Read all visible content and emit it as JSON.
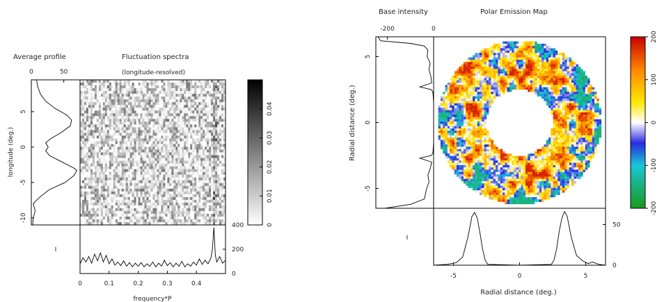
{
  "chart_data": [
    {
      "type": "line",
      "panel": "average-profile",
      "title": "Average profile",
      "ylabel": "longitude (deg.)",
      "xlim": [
        0,
        75
      ],
      "ylim": [
        -11,
        9.5
      ],
      "x_ticks": [
        0,
        50
      ],
      "y_ticks": [
        -10,
        -5,
        0,
        5
      ],
      "points": [
        {
          "y": -11,
          "x": 2
        },
        {
          "y": -10,
          "x": 3
        },
        {
          "y": -9,
          "x": 6
        },
        {
          "y": -8,
          "x": 3
        },
        {
          "y": -7.5,
          "x": 8
        },
        {
          "y": -7,
          "x": 14
        },
        {
          "y": -6,
          "x": 28
        },
        {
          "y": -5,
          "x": 52
        },
        {
          "y": -4,
          "x": 66
        },
        {
          "y": -3.3,
          "x": 70
        },
        {
          "y": -3,
          "x": 66
        },
        {
          "y": -2,
          "x": 45
        },
        {
          "y": -1.2,
          "x": 28
        },
        {
          "y": -0.5,
          "x": 22
        },
        {
          "y": 0,
          "x": 26
        },
        {
          "y": 0.6,
          "x": 22
        },
        {
          "y": 1.2,
          "x": 30
        },
        {
          "y": 2,
          "x": 45
        },
        {
          "y": 3,
          "x": 60
        },
        {
          "y": 3.8,
          "x": 62
        },
        {
          "y": 4.5,
          "x": 55
        },
        {
          "y": 5.5,
          "x": 36
        },
        {
          "y": 6.5,
          "x": 22
        },
        {
          "y": 7.5,
          "x": 14
        },
        {
          "y": 8.5,
          "x": 10
        },
        {
          "y": 9.5,
          "x": 8
        }
      ]
    },
    {
      "type": "heatmap",
      "panel": "fluctuation-spectra",
      "title": "Fluctuation spectra",
      "subtitle": "(longitude-resolved)",
      "xlim": [
        0,
        0.5
      ],
      "ylim": [
        -11,
        9.5
      ],
      "colorbar": {
        "range": [
          0,
          0.05
        ],
        "ticks": [
          0,
          0.01,
          0.02,
          0.03,
          0.04
        ],
        "colormap": "white-to-black"
      }
    },
    {
      "type": "line",
      "panel": "integrated-spectrum",
      "xlabel": "frequency*P",
      "xlim": [
        0,
        0.5
      ],
      "ylim": [
        0,
        400
      ],
      "x_ticks": [
        0,
        0.1,
        0.2,
        0.3,
        0.4
      ],
      "y_ticks": [
        0,
        200,
        400
      ],
      "marker": "I",
      "points": [
        {
          "x": 0.0,
          "y": 80
        },
        {
          "x": 0.01,
          "y": 130
        },
        {
          "x": 0.02,
          "y": 95
        },
        {
          "x": 0.03,
          "y": 140
        },
        {
          "x": 0.04,
          "y": 85
        },
        {
          "x": 0.05,
          "y": 160
        },
        {
          "x": 0.06,
          "y": 105
        },
        {
          "x": 0.07,
          "y": 170
        },
        {
          "x": 0.08,
          "y": 95
        },
        {
          "x": 0.09,
          "y": 150
        },
        {
          "x": 0.1,
          "y": 80
        },
        {
          "x": 0.11,
          "y": 120
        },
        {
          "x": 0.12,
          "y": 70
        },
        {
          "x": 0.13,
          "y": 95
        },
        {
          "x": 0.14,
          "y": 65
        },
        {
          "x": 0.15,
          "y": 105
        },
        {
          "x": 0.16,
          "y": 60
        },
        {
          "x": 0.17,
          "y": 90
        },
        {
          "x": 0.18,
          "y": 55
        },
        {
          "x": 0.19,
          "y": 85
        },
        {
          "x": 0.2,
          "y": 60
        },
        {
          "x": 0.21,
          "y": 90
        },
        {
          "x": 0.22,
          "y": 55
        },
        {
          "x": 0.23,
          "y": 80
        },
        {
          "x": 0.24,
          "y": 60
        },
        {
          "x": 0.25,
          "y": 95
        },
        {
          "x": 0.26,
          "y": 55
        },
        {
          "x": 0.27,
          "y": 85
        },
        {
          "x": 0.28,
          "y": 60
        },
        {
          "x": 0.29,
          "y": 110
        },
        {
          "x": 0.3,
          "y": 65
        },
        {
          "x": 0.31,
          "y": 90
        },
        {
          "x": 0.32,
          "y": 55
        },
        {
          "x": 0.33,
          "y": 85
        },
        {
          "x": 0.34,
          "y": 60
        },
        {
          "x": 0.35,
          "y": 100
        },
        {
          "x": 0.36,
          "y": 55
        },
        {
          "x": 0.37,
          "y": 80
        },
        {
          "x": 0.38,
          "y": 60
        },
        {
          "x": 0.39,
          "y": 95
        },
        {
          "x": 0.4,
          "y": 70
        },
        {
          "x": 0.41,
          "y": 120
        },
        {
          "x": 0.42,
          "y": 75
        },
        {
          "x": 0.43,
          "y": 110
        },
        {
          "x": 0.44,
          "y": 80
        },
        {
          "x": 0.45,
          "y": 130
        },
        {
          "x": 0.455,
          "y": 200
        },
        {
          "x": 0.46,
          "y": 380
        },
        {
          "x": 0.465,
          "y": 150
        },
        {
          "x": 0.47,
          "y": 95
        },
        {
          "x": 0.48,
          "y": 140
        },
        {
          "x": 0.49,
          "y": 85
        },
        {
          "x": 0.5,
          "y": 110
        }
      ]
    },
    {
      "type": "line",
      "panel": "base-intensity",
      "title": "Base intensity",
      "ylabel": "Radial distance (deg.)",
      "xlim": [
        -250,
        0
      ],
      "ylim": [
        -6.5,
        6.5
      ],
      "x_ticks": [
        -200,
        0
      ],
      "y_ticks": [
        -5,
        0,
        5
      ],
      "points": [
        {
          "y": -6.5,
          "x": -210
        },
        {
          "y": -6.2,
          "x": -100
        },
        {
          "y": -5.8,
          "x": -40
        },
        {
          "y": -5,
          "x": -30
        },
        {
          "y": -4.5,
          "x": -20
        },
        {
          "y": -4,
          "x": -25
        },
        {
          "y": -3.5,
          "x": -15
        },
        {
          "y": -3,
          "x": -8
        },
        {
          "y": -2.7,
          "x": -60
        },
        {
          "y": -2.5,
          "x": -10
        },
        {
          "y": -2.3,
          "x": -3
        },
        {
          "y": -1.5,
          "x": 0
        },
        {
          "y": 0,
          "x": 0
        },
        {
          "y": 1.5,
          "x": 0
        },
        {
          "y": 2.3,
          "x": -3
        },
        {
          "y": 2.5,
          "x": -10
        },
        {
          "y": 2.7,
          "x": -60
        },
        {
          "y": 3,
          "x": -8
        },
        {
          "y": 3.5,
          "x": -12
        },
        {
          "y": 4,
          "x": -20
        },
        {
          "y": 4.5,
          "x": -15
        },
        {
          "y": 5,
          "x": -28
        },
        {
          "y": 5.5,
          "x": -25
        },
        {
          "y": 5.8,
          "x": -40
        },
        {
          "y": 6.0,
          "x": -100
        },
        {
          "y": 6.2,
          "x": -230
        },
        {
          "y": 6.5,
          "x": -240
        }
      ]
    },
    {
      "type": "heatmap",
      "panel": "polar-emission-map",
      "title": "Polar Emission Map",
      "xlabel": "Radial distance (deg.)",
      "xlim": [
        -6.5,
        6.5
      ],
      "ylim": [
        -6.5,
        6.5
      ],
      "ring_radius_deg": [
        2.5,
        6.2
      ],
      "colorbar": {
        "range": [
          -200,
          200
        ],
        "ticks": [
          -200,
          -100,
          0,
          100,
          200
        ],
        "colormap": "green-cyan-blue-white-yellow-red",
        "colors": [
          "#1a9a1a",
          "#19c6d6",
          "#2a2ae0",
          "#ffffff",
          "#ffe600",
          "#ff8a00",
          "#c80000"
        ]
      }
    },
    {
      "type": "line",
      "panel": "radial-profile",
      "xlim": [
        -6.5,
        6.5
      ],
      "ylim": [
        0,
        70
      ],
      "x_ticks": [
        -5,
        0,
        5
      ],
      "y_ticks": [
        0,
        50
      ],
      "marker": "I",
      "points": [
        {
          "x": -6.5,
          "y": 0
        },
        {
          "x": -5.5,
          "y": 1
        },
        {
          "x": -4.8,
          "y": 3
        },
        {
          "x": -4.3,
          "y": 10
        },
        {
          "x": -3.9,
          "y": 35
        },
        {
          "x": -3.6,
          "y": 60
        },
        {
          "x": -3.4,
          "y": 65
        },
        {
          "x": -3.2,
          "y": 58
        },
        {
          "x": -3.0,
          "y": 40
        },
        {
          "x": -2.8,
          "y": 20
        },
        {
          "x": -2.6,
          "y": 6
        },
        {
          "x": -2.4,
          "y": 1
        },
        {
          "x": 0,
          "y": 0
        },
        {
          "x": 2.4,
          "y": 1
        },
        {
          "x": 2.6,
          "y": 6
        },
        {
          "x": 2.8,
          "y": 20
        },
        {
          "x": 3.0,
          "y": 42
        },
        {
          "x": 3.2,
          "y": 58
        },
        {
          "x": 3.4,
          "y": 66
        },
        {
          "x": 3.6,
          "y": 60
        },
        {
          "x": 3.9,
          "y": 35
        },
        {
          "x": 4.3,
          "y": 12
        },
        {
          "x": 4.8,
          "y": 5
        },
        {
          "x": 5.2,
          "y": 2
        },
        {
          "x": 5.5,
          "y": 4
        },
        {
          "x": 6.0,
          "y": 1
        },
        {
          "x": 6.5,
          "y": 0
        }
      ]
    }
  ]
}
